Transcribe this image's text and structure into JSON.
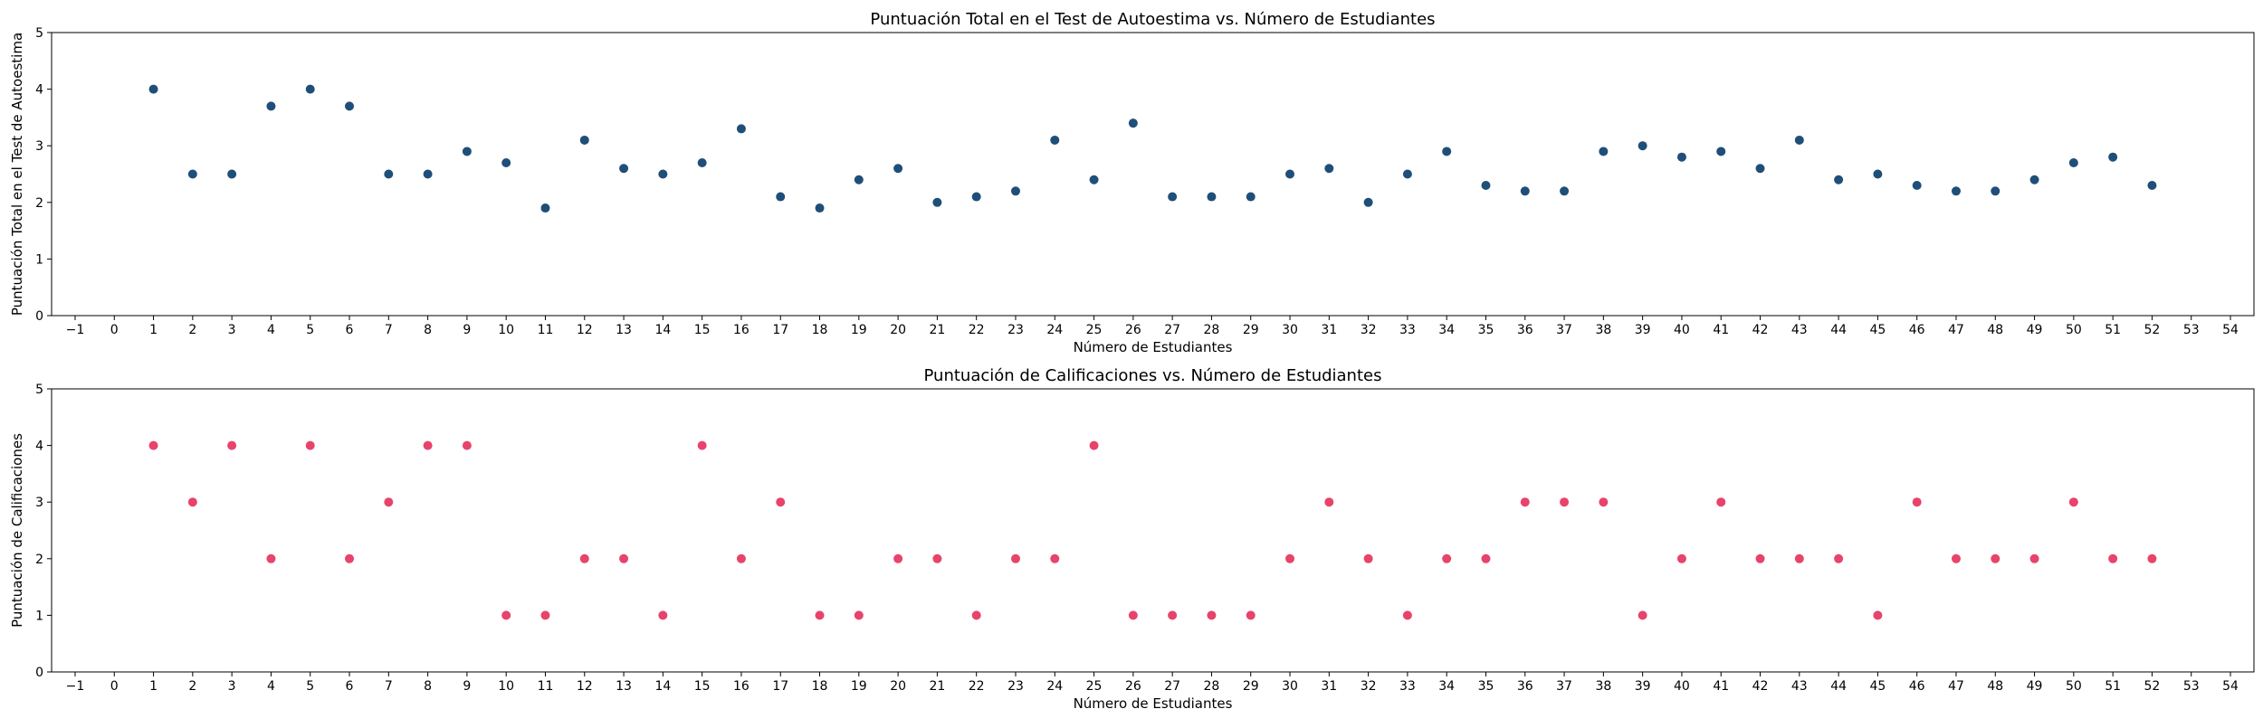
{
  "chart_data": [
    {
      "type": "scatter",
      "title": "Puntuación Total en el Test de Autoestima vs. Número de Estudiantes",
      "xlabel": "Número de Estudiantes",
      "ylabel": "Puntuación Total en el Test de Autoestima",
      "xlim": [
        -1.6,
        54.6
      ],
      "ylim": [
        0,
        5
      ],
      "xticks": [
        -1,
        0,
        1,
        2,
        3,
        4,
        5,
        6,
        7,
        8,
        9,
        10,
        11,
        12,
        13,
        14,
        15,
        16,
        17,
        18,
        19,
        20,
        21,
        22,
        23,
        24,
        25,
        26,
        27,
        28,
        29,
        30,
        31,
        32,
        33,
        34,
        35,
        36,
        37,
        38,
        39,
        40,
        41,
        42,
        43,
        44,
        45,
        46,
        47,
        48,
        49,
        50,
        51,
        52,
        53,
        54
      ],
      "xtick_labels": [
        "−1",
        "0",
        "1",
        "2",
        "3",
        "4",
        "5",
        "6",
        "7",
        "8",
        "9",
        "10",
        "11",
        "12",
        "13",
        "14",
        "15",
        "16",
        "17",
        "18",
        "19",
        "20",
        "21",
        "22",
        "23",
        "24",
        "25",
        "26",
        "27",
        "28",
        "29",
        "30",
        "31",
        "32",
        "33",
        "34",
        "35",
        "36",
        "37",
        "38",
        "39",
        "40",
        "41",
        "42",
        "43",
        "44",
        "45",
        "46",
        "47",
        "48",
        "49",
        "50",
        "51",
        "52",
        "53",
        "54"
      ],
      "yticks": [
        0,
        1,
        2,
        3,
        4,
        5
      ],
      "ytick_labels": [
        "0",
        "1",
        "2",
        "3",
        "4",
        "5"
      ],
      "grid": false,
      "color": "#1f4e79",
      "x": [
        1,
        2,
        3,
        4,
        5,
        6,
        7,
        8,
        9,
        10,
        11,
        12,
        13,
        14,
        15,
        16,
        17,
        18,
        19,
        20,
        21,
        22,
        23,
        24,
        25,
        26,
        27,
        28,
        29,
        30,
        31,
        32,
        33,
        34,
        35,
        36,
        37,
        38,
        39,
        40,
        41,
        42,
        43,
        44,
        45,
        46,
        47,
        48,
        49,
        50,
        51,
        52
      ],
      "y": [
        4.0,
        2.5,
        2.5,
        3.7,
        4.0,
        3.7,
        2.5,
        2.5,
        2.9,
        2.7,
        1.9,
        3.1,
        2.6,
        2.5,
        2.7,
        3.3,
        2.1,
        1.9,
        2.4,
        2.6,
        2.0,
        2.1,
        2.2,
        3.1,
        2.4,
        3.4,
        2.1,
        2.1,
        2.1,
        2.5,
        2.6,
        2.0,
        2.5,
        2.9,
        2.3,
        2.2,
        2.2,
        2.9,
        3.0,
        2.8,
        2.9,
        2.6,
        3.1,
        2.4,
        2.5,
        2.3,
        2.2,
        2.2,
        2.4,
        2.7,
        2.8,
        2.3
      ]
    },
    {
      "type": "scatter",
      "title": "Puntuación de Calificaciones vs. Número de Estudiantes",
      "xlabel": "Número de Estudiantes",
      "ylabel": "Puntuación de Calificaciones",
      "xlim": [
        -1.6,
        54.6
      ],
      "ylim": [
        0,
        5
      ],
      "xticks": [
        -1,
        0,
        1,
        2,
        3,
        4,
        5,
        6,
        7,
        8,
        9,
        10,
        11,
        12,
        13,
        14,
        15,
        16,
        17,
        18,
        19,
        20,
        21,
        22,
        23,
        24,
        25,
        26,
        27,
        28,
        29,
        30,
        31,
        32,
        33,
        34,
        35,
        36,
        37,
        38,
        39,
        40,
        41,
        42,
        43,
        44,
        45,
        46,
        47,
        48,
        49,
        50,
        51,
        52,
        53,
        54
      ],
      "xtick_labels": [
        "−1",
        "0",
        "1",
        "2",
        "3",
        "4",
        "5",
        "6",
        "7",
        "8",
        "9",
        "10",
        "11",
        "12",
        "13",
        "14",
        "15",
        "16",
        "17",
        "18",
        "19",
        "20",
        "21",
        "22",
        "23",
        "24",
        "25",
        "26",
        "27",
        "28",
        "29",
        "30",
        "31",
        "32",
        "33",
        "34",
        "35",
        "36",
        "37",
        "38",
        "39",
        "40",
        "41",
        "42",
        "43",
        "44",
        "45",
        "46",
        "47",
        "48",
        "49",
        "50",
        "51",
        "52",
        "53",
        "54"
      ],
      "yticks": [
        0,
        1,
        2,
        3,
        4,
        5
      ],
      "ytick_labels": [
        "0",
        "1",
        "2",
        "3",
        "4",
        "5"
      ],
      "grid": false,
      "color": "#e8436b",
      "x": [
        1,
        2,
        3,
        4,
        5,
        6,
        7,
        8,
        9,
        10,
        11,
        12,
        13,
        14,
        15,
        16,
        17,
        18,
        19,
        20,
        21,
        22,
        23,
        24,
        25,
        26,
        27,
        28,
        29,
        30,
        31,
        32,
        33,
        34,
        35,
        36,
        37,
        38,
        39,
        40,
        41,
        42,
        43,
        44,
        45,
        46,
        47,
        48,
        49,
        50,
        51,
        52
      ],
      "y": [
        4,
        3,
        4,
        2,
        4,
        2,
        3,
        4,
        4,
        1,
        1,
        2,
        2,
        1,
        4,
        2,
        3,
        1,
        1,
        2,
        2,
        1,
        2,
        2,
        4,
        1,
        1,
        1,
        1,
        2,
        3,
        2,
        1,
        2,
        2,
        3,
        3,
        3,
        1,
        2,
        3,
        2,
        2,
        2,
        1,
        3,
        2,
        2,
        2,
        3,
        2,
        2
      ]
    }
  ]
}
